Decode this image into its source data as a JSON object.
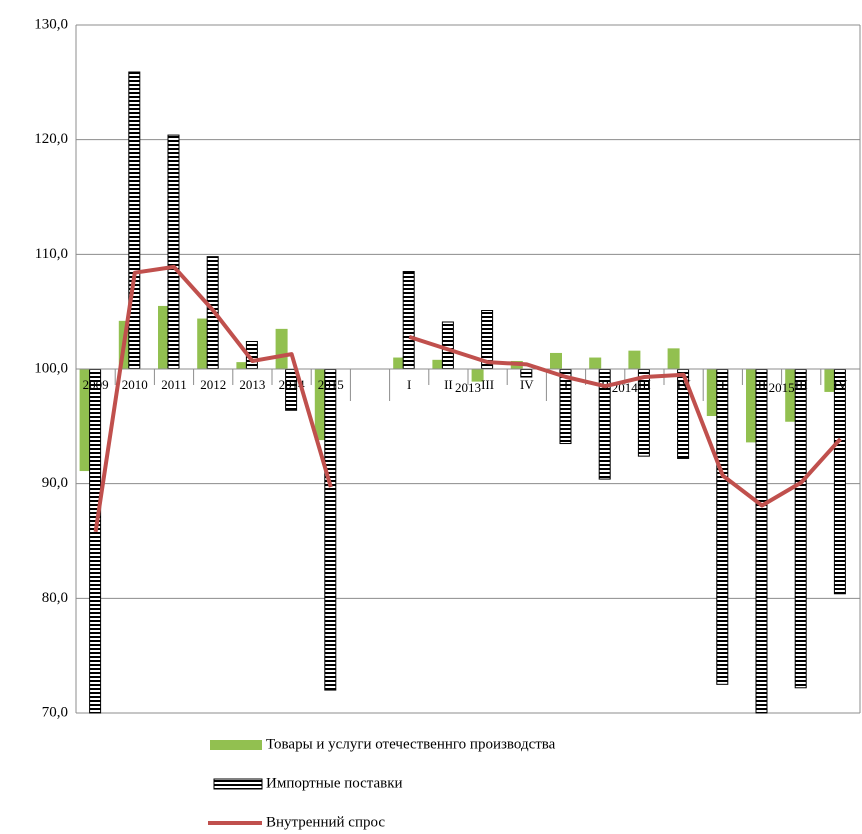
{
  "chart_data": {
    "type": "bar-line",
    "annual_categories": [
      "2009",
      "2010",
      "2011",
      "2012",
      "2013",
      "2014",
      "2015"
    ],
    "quarter_groups": [
      {
        "label": "2013",
        "quarters": [
          "I",
          "II",
          "III",
          "IV"
        ]
      },
      {
        "label": "2014",
        "quarters": [
          "I",
          "II",
          "III",
          "IV"
        ]
      },
      {
        "label": "2015",
        "quarters": [
          "I",
          "II",
          "III",
          "IV"
        ]
      }
    ],
    "series": [
      {
        "name": "Товары и услуги  отечественнго производства",
        "kind": "bar",
        "color": "#92c050",
        "values": [
          91.1,
          104.2,
          105.5,
          104.4,
          100.6,
          103.5,
          93.8,
          null,
          101.0,
          100.8,
          98.9,
          100.7,
          101.4,
          101.0,
          101.6,
          101.8,
          95.9,
          93.6,
          95.4,
          98.0
        ]
      },
      {
        "name": "Импортные поставки",
        "kind": "hatched-bar",
        "color": "#000000",
        "values": [
          70.0,
          125.9,
          120.4,
          109.8,
          102.4,
          96.4,
          72.0,
          null,
          108.5,
          104.1,
          105.1,
          99.3,
          93.5,
          90.4,
          92.4,
          92.2,
          72.5,
          70.0,
          72.2,
          80.4
        ]
      },
      {
        "name": "Внутренний спрос",
        "kind": "line",
        "color": "#c0504d",
        "values": [
          85.8,
          108.4,
          108.9,
          105.1,
          100.7,
          101.3,
          89.7,
          null,
          102.8,
          101.7,
          100.6,
          100.4,
          99.3,
          98.5,
          99.3,
          99.5,
          90.7,
          88.1,
          90.1,
          93.9
        ]
      }
    ],
    "ylim": [
      70,
      130
    ],
    "yticks": [
      {
        "value": 70,
        "label": "70,0"
      },
      {
        "value": 80,
        "label": "80,0"
      },
      {
        "value": 90,
        "label": "90,0"
      },
      {
        "value": 100,
        "label": "100,0"
      },
      {
        "value": 110,
        "label": "110,0"
      },
      {
        "value": 120,
        "label": "120,0"
      },
      {
        "value": 130,
        "label": "130,0"
      }
    ],
    "baseline": 100,
    "grid": true
  }
}
